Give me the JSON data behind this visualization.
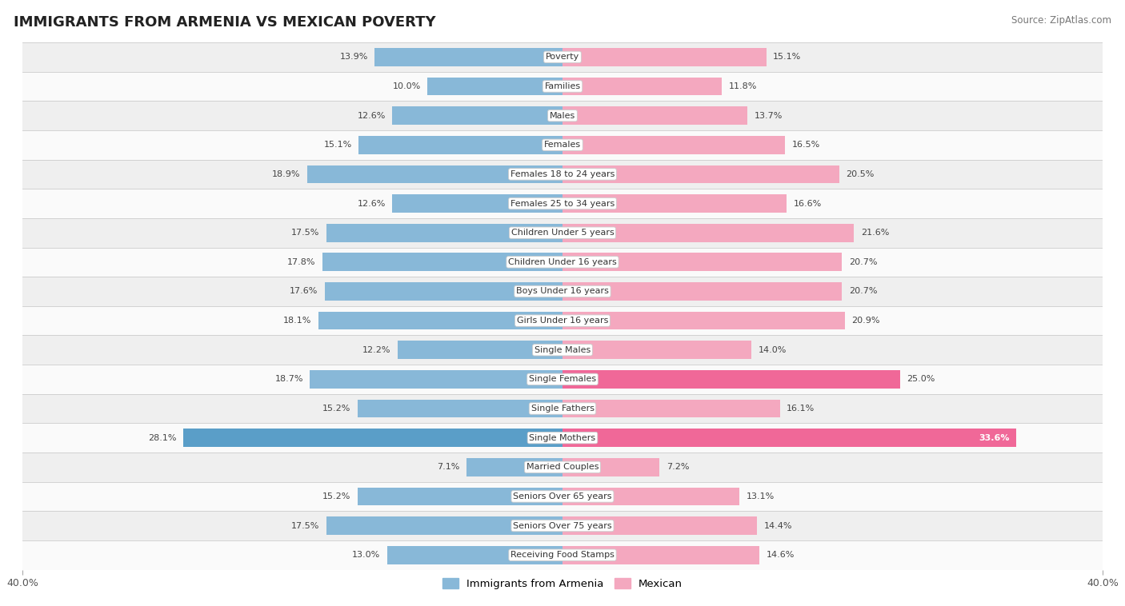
{
  "title": "IMMIGRANTS FROM ARMENIA VS MEXICAN POVERTY",
  "source": "Source: ZipAtlas.com",
  "categories": [
    "Poverty",
    "Families",
    "Males",
    "Females",
    "Females 18 to 24 years",
    "Females 25 to 34 years",
    "Children Under 5 years",
    "Children Under 16 years",
    "Boys Under 16 years",
    "Girls Under 16 years",
    "Single Males",
    "Single Females",
    "Single Fathers",
    "Single Mothers",
    "Married Couples",
    "Seniors Over 65 years",
    "Seniors Over 75 years",
    "Receiving Food Stamps"
  ],
  "armenia_values": [
    13.9,
    10.0,
    12.6,
    15.1,
    18.9,
    12.6,
    17.5,
    17.8,
    17.6,
    18.1,
    12.2,
    18.7,
    15.2,
    28.1,
    7.1,
    15.2,
    17.5,
    13.0
  ],
  "mexican_values": [
    15.1,
    11.8,
    13.7,
    16.5,
    20.5,
    16.6,
    21.6,
    20.7,
    20.7,
    20.9,
    14.0,
    25.0,
    16.1,
    33.6,
    7.2,
    13.1,
    14.4,
    14.6
  ],
  "armenia_color": "#88b8d8",
  "mexican_color": "#f4a8bf",
  "armenia_highlight_color": "#5a9ec8",
  "mexican_highlight_color": "#f06898",
  "bg_row_even": "#efefef",
  "bg_row_odd": "#fafafa",
  "axis_limit": 40.0,
  "legend_armenia": "Immigrants from Armenia",
  "legend_mexican": "Mexican",
  "bar_height": 0.62,
  "highlight_indices": [
    13
  ],
  "highlight_pink_indices": [
    11
  ]
}
